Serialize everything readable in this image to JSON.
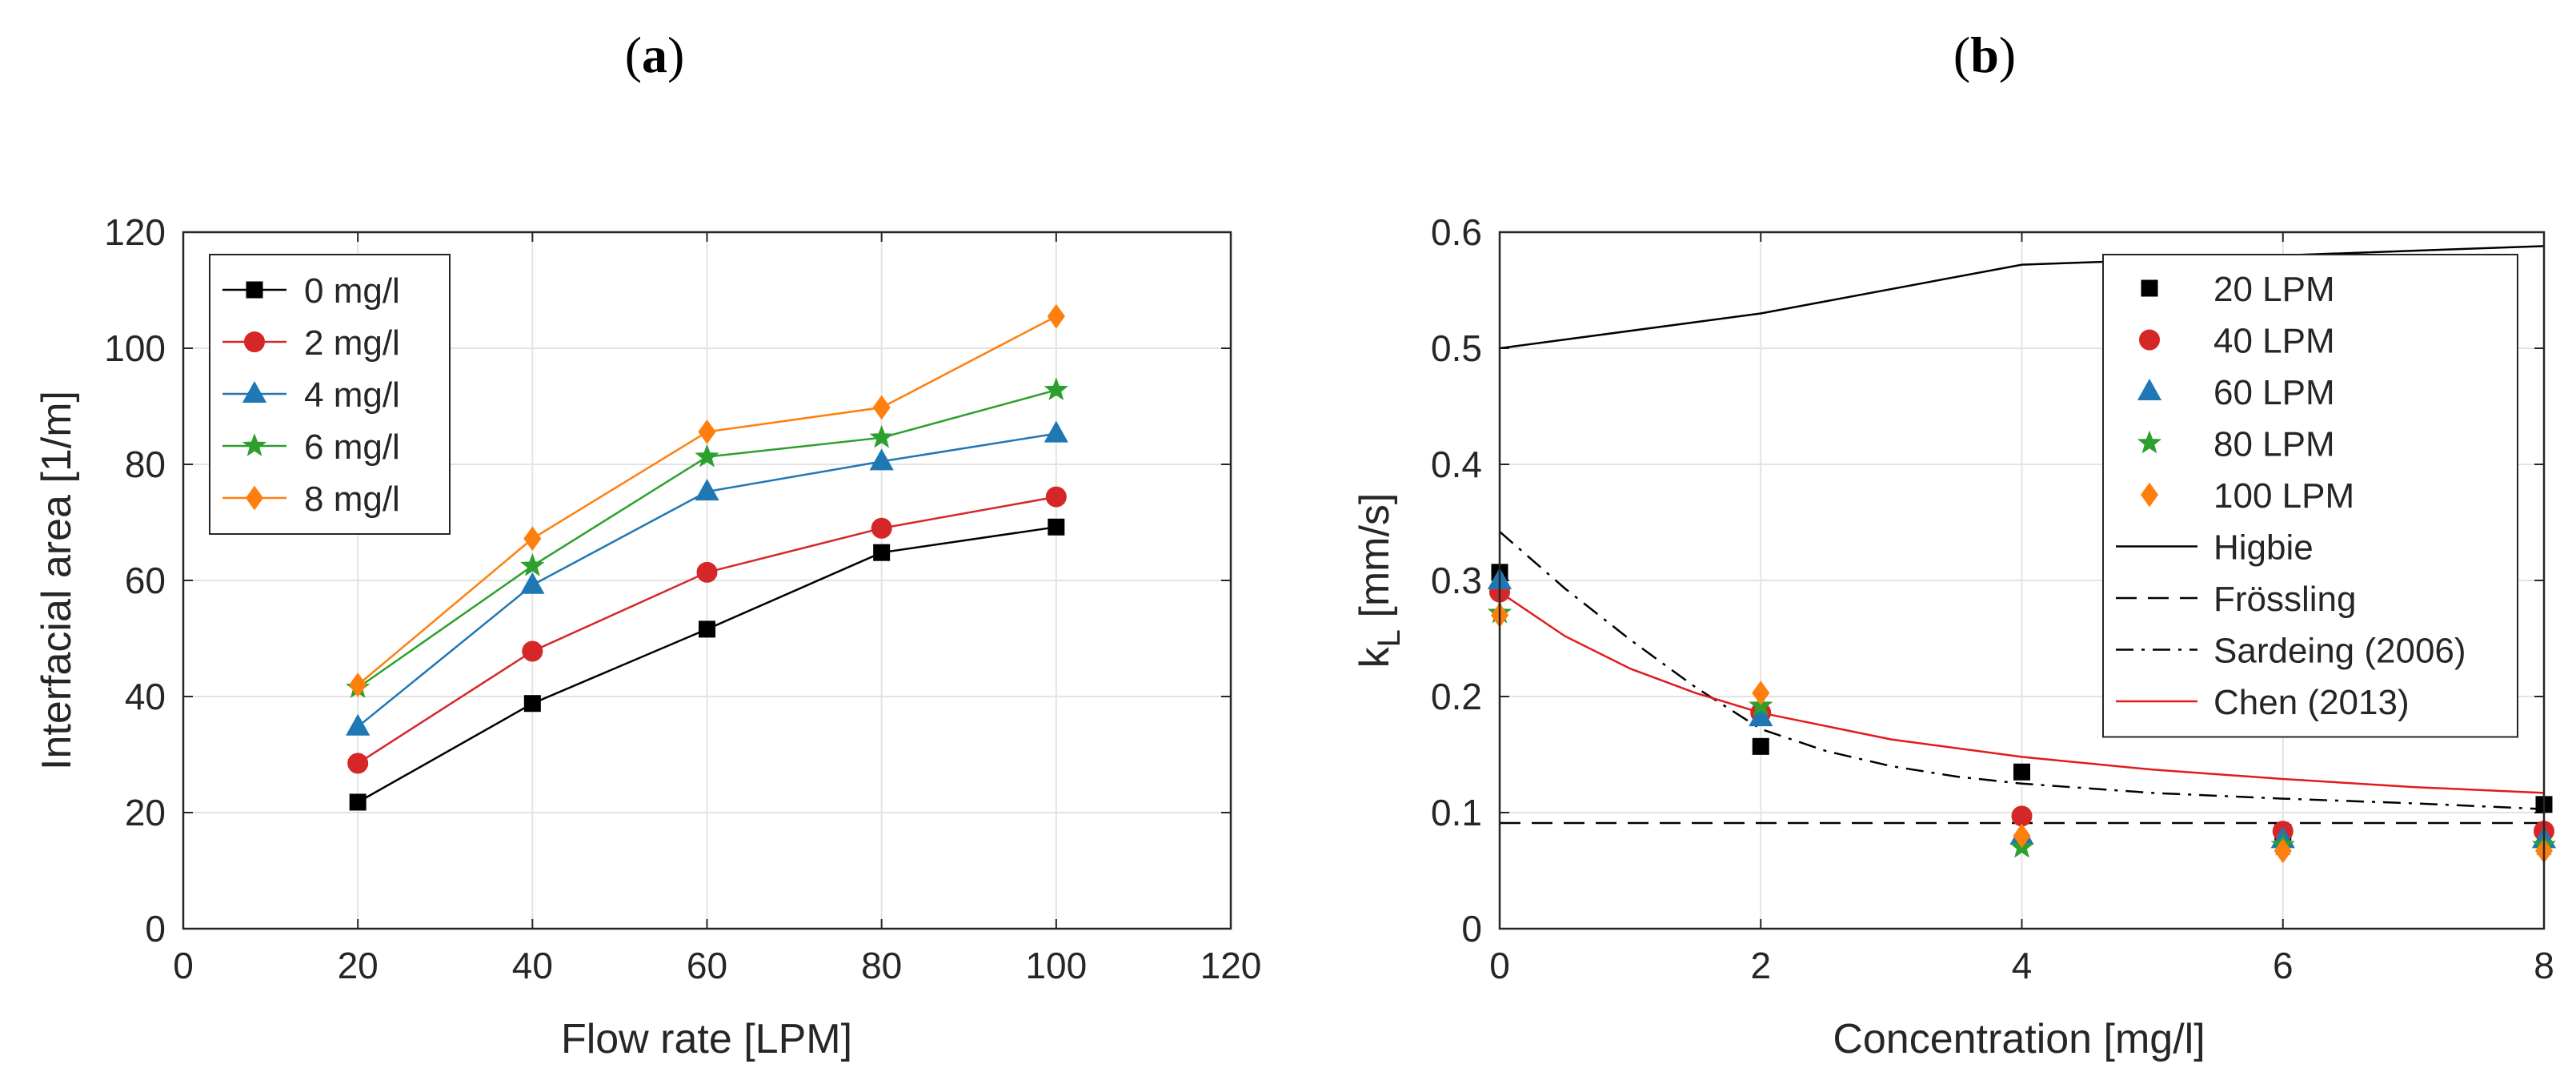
{
  "chart_data": [
    {
      "type": "line",
      "panel_label": {
        "open": "(",
        "letter": "a",
        "close": ")"
      },
      "title": "",
      "xlabel": "Flow rate [LPM]",
      "ylabel": "Interfacial area [1/m]",
      "xlim": [
        0,
        120
      ],
      "ylim": [
        0,
        120
      ],
      "xticks": [
        0,
        20,
        40,
        60,
        80,
        100,
        120
      ],
      "yticks": [
        0,
        20,
        40,
        60,
        80,
        100,
        120
      ],
      "grid": true,
      "legend_position": "top-left",
      "x": [
        20,
        40,
        60,
        80,
        100
      ],
      "series": [
        {
          "name": "0 mg/l",
          "color": "#000000",
          "marker": "square",
          "values": [
            21.8,
            38.8,
            51.6,
            64.8,
            69.2
          ]
        },
        {
          "name": "2 mg/l",
          "color": "#D62728",
          "marker": "circle",
          "values": [
            28.5,
            47.8,
            61.4,
            69.0,
            74.4
          ]
        },
        {
          "name": "4 mg/l",
          "color": "#1F77B4",
          "marker": "triangle",
          "values": [
            34.8,
            59.2,
            75.3,
            80.5,
            85.3
          ]
        },
        {
          "name": "6 mg/l",
          "color": "#2CA02C",
          "marker": "star",
          "values": [
            41.5,
            62.5,
            81.3,
            84.6,
            92.8
          ]
        },
        {
          "name": "8 mg/l",
          "color": "#FF7F0E",
          "marker": "diamond",
          "values": [
            42.0,
            67.2,
            85.6,
            89.8,
            105.5
          ]
        }
      ]
    },
    {
      "type": "scatter",
      "panel_label": {
        "open": "(",
        "letter": "b",
        "close": ")"
      },
      "title": "",
      "xlabel": "Concentration [mg/l]",
      "ylabel_main": "k",
      "ylabel_sub": "L",
      "ylabel_unit": " [mm/s]",
      "xlim": [
        0,
        8
      ],
      "ylim": [
        0,
        0.6
      ],
      "xticks": [
        0,
        2,
        4,
        6,
        8
      ],
      "yticks": [
        0,
        0.1,
        0.2,
        0.3,
        0.4,
        0.5,
        0.6
      ],
      "ytick_labels": [
        "0",
        "0.1",
        "0.2",
        "0.3",
        "0.4",
        "0.5",
        "0.6"
      ],
      "grid": true,
      "legend_position": "top-right",
      "x": [
        0,
        2,
        4,
        6,
        8
      ],
      "series": [
        {
          "name": "20 LPM",
          "color": "#000000",
          "marker": "square",
          "values": [
            0.307,
            0.157,
            0.135,
            0.083,
            0.107
          ]
        },
        {
          "name": "40 LPM",
          "color": "#D62728",
          "marker": "circle",
          "values": [
            0.29,
            0.186,
            0.097,
            0.084,
            0.084
          ]
        },
        {
          "name": "60 LPM",
          "color": "#1F77B4",
          "marker": "triangle",
          "values": [
            0.3,
            0.182,
            0.08,
            0.077,
            0.077
          ]
        },
        {
          "name": "80 LPM",
          "color": "#2CA02C",
          "marker": "star",
          "values": [
            0.272,
            0.192,
            0.07,
            0.072,
            0.072
          ]
        },
        {
          "name": "100 LPM",
          "color": "#FF7F0E",
          "marker": "diamond",
          "values": [
            0.27,
            0.203,
            0.08,
            0.067,
            0.067
          ]
        }
      ],
      "curves": [
        {
          "name": "Higbie",
          "color": "#000000",
          "dash": "solid",
          "x": [
            0,
            2,
            4,
            6,
            8
          ],
          "y": [
            0.5,
            0.53,
            0.572,
            0.58,
            0.588
          ]
        },
        {
          "name": "Frössling",
          "color": "#000000",
          "dash": "dashed",
          "x": [
            0,
            8
          ],
          "y": [
            0.091,
            0.091
          ]
        },
        {
          "name": "Sardeing (2006)",
          "color": "#000000",
          "dash": "dashdot",
          "x": [
            0,
            0.5,
            1,
            1.5,
            2,
            2.5,
            3,
            3.5,
            4,
            5,
            6,
            7,
            8
          ],
          "y": [
            0.342,
            0.293,
            0.249,
            0.208,
            0.172,
            0.153,
            0.14,
            0.131,
            0.125,
            0.117,
            0.112,
            0.108,
            0.103
          ]
        },
        {
          "name": "Chen (2013)",
          "color": "#E31A1C",
          "dash": "solid",
          "x": [
            0,
            0.5,
            1,
            1.5,
            2,
            3,
            4,
            5,
            6,
            7,
            8
          ],
          "y": [
            0.29,
            0.252,
            0.224,
            0.203,
            0.186,
            0.163,
            0.148,
            0.137,
            0.129,
            0.122,
            0.117
          ]
        }
      ]
    }
  ]
}
